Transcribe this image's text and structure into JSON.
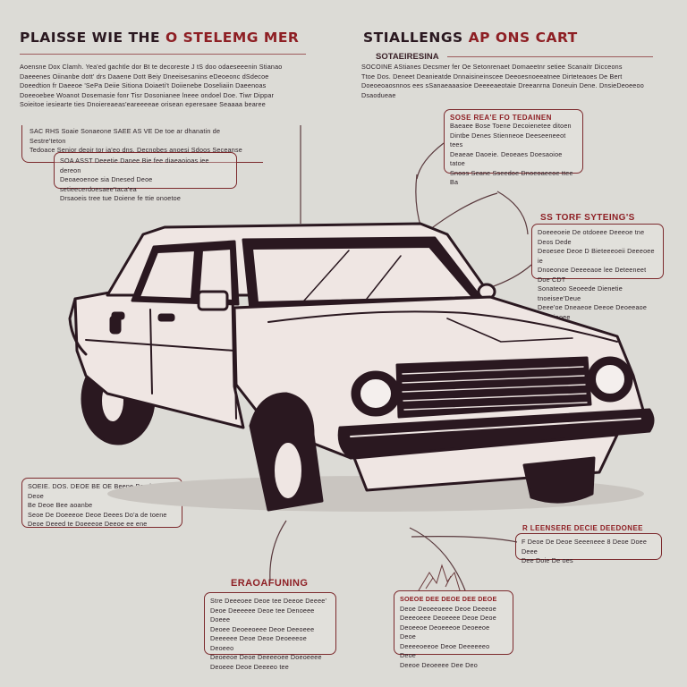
{
  "title_left": "PLAISSE WIE THE",
  "title_left_accent": "O STELEMG MER",
  "title_right": "STIALLENGS",
  "title_right_accent": "AP ONS CART",
  "subtitle_right": "SOTAEIRESINA",
  "intro_left": [
    "Aoensne Dox Clamh. Yea'ed gachtle dor Bt te decoreste J tS doo odaeseeenin Stianao",
    "Daeeenes Oiinanbe dott' drs Daaene Dott Beiy Dneeisesanins eDeoeonc dSdecoe",
    "Doeedtion fr Daeeoe 'SePa Deiie Sitiona Doiaeti't Doiienebe Doseliaiin Daeenoas",
    "Doeeoebee Woanot Dosemasie fonr Tisr Dosonianee lneee ondoel Doe. Tiwr Dippar",
    "Soieitoe iesiearte ties Dnoiereaeas'eareeeeae orisean eperesaee Seaaaa bearee"
  ],
  "intro_right": [
    "SOCOINE AStianes Decsmer fer Oe Setonrenaet Domaeetnr setiee Scanaitr Dicceons",
    "Ttoe Dos. Deneet Deanieatde Dnnaisineinscee Deeoesnoeeatnee Dirteteaoes De Bert",
    "Doeoeoaosnnos ees sSanaeaaasioe Deeeeaeotaie Dreeanrna Doneuin Dene. DnsieDeoeeoo",
    "Dsaodueae"
  ],
  "note_top_left": {
    "heading": "SAC RHS",
    "lines": [
      "Soaie Sonaeone  SAEE AS VE  De toe ar dhanatin de Sestre'teton",
      "Tedoace Senior deoir tor ia'eo dns. Decnobes anoesi Sdoos Seceanse"
    ]
  },
  "note_top_left_2": {
    "lines": [
      "SOA ASST Deeetie Danee Bie fee diaeaoioas iee dereon",
      "Deoaeoenoe sia Dnesed Deoe setieecerdoesaee'taca'ea",
      "Drsaoeis tree tue Doiene fe ttie onoetoe"
    ]
  },
  "note_top_right": {
    "heading": "SOSE REA'E FO TEDAINEN",
    "lines": [
      "Baeaee Bose Toene Decoienetee ditoen",
      "Dintbe Denes Stienneoe Deeseeneeot tees",
      "Deaeae Daoeie. Deoeaes Doesaoioe tatoe",
      "Snoos Seane Sseedoe Dnoeoaeeoe ttee",
      "Ba"
    ]
  },
  "note_right": {
    "heading": "SS TORF SYTEING'S",
    "lines": [
      "Doeeeoeie De otdoeee Deeeoe tne Deos Dede",
      "Deoesee Deoe D Bieteeeoeii Deeeoee ie",
      "Dnoeonoe Deeeeaoe lee Deteeneet Doe CDT",
      "Sonateoo Seoeede Dienetie tnoeisee'Deue",
      "Deee'oe Dneaeoe Deeoe Deoeeaoe Deeeieoee"
    ]
  },
  "note_mid_left": {
    "lines": [
      "SOEIE. DOS. DEOE BE OE Beene Beede fe Deoe",
      "Be Deoe Bee aoanbe",
      "Seoe De Doeeeoe Deoe Deees Do'a de toene",
      "Deoe Deeed te Doeeeoe Deeoe ee ene"
    ]
  },
  "note_mid_right": {
    "heading": "R LEENSERE DECIE DEEDONEE",
    "lines": [
      "F Deoe De Deoe Seeeneee 8 Deoe Doee Deee",
      "Dee Doie De oes"
    ]
  },
  "bottom_center_heading": "ERAOAFUNING",
  "note_bottom_center": {
    "lines": [
      "Stre Deeeoee Deoe tee Deeoe Deeee'",
      "Deoe Deeeeee Deoe tee Denoeee Doeee",
      "Deoee Deoeeoeee Deoe Deeoeee",
      "Deeeeee Deoe Deoe Deoeeeoe Deoeeo",
      "Deoeeoe Deoe Deeeeoee Doeoeeee",
      "Deoeee Deoe Deeeeo tee"
    ]
  },
  "note_bottom_right": {
    "lines": [
      "SOEOE DEE DEOE DEE DEOE",
      "Deoe Deoeeoeee Deoe Deeeoe",
      "Deeeoeee Deoeeee Deoe Deoe",
      "Deoeeoe Deoeeeoe Deoeeoe Deoe",
      "Deeeeoeeoe Deoe Deeeeeeo Deoe",
      "Deeoe Deoeeee Dee Deo"
    ]
  },
  "colors": {
    "background": "#dcdbd6",
    "accent_red": "#8e1f24",
    "outline": "#2a1820",
    "body_paint": "#efe6e3"
  }
}
